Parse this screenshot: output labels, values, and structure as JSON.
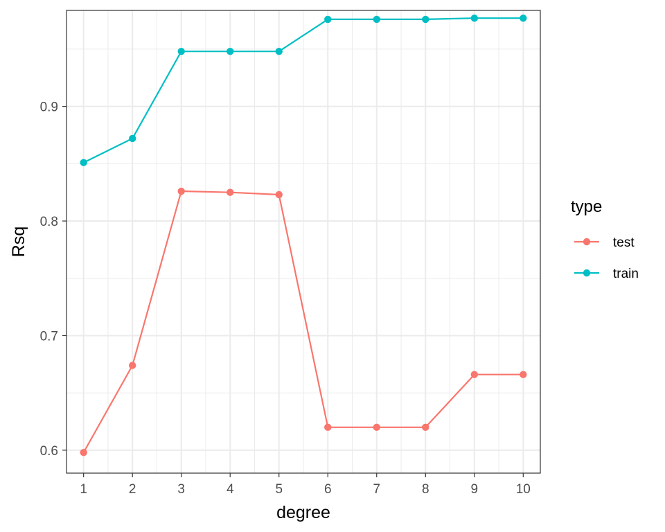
{
  "chart_data": {
    "type": "line",
    "xlabel": "degree",
    "ylabel": "Rsq",
    "x": [
      1,
      2,
      3,
      4,
      5,
      6,
      7,
      8,
      9,
      10
    ],
    "xlim": [
      0.65,
      10.35
    ],
    "ylim": [
      0.58,
      0.9838
    ],
    "xticks": [
      "1",
      "2",
      "3",
      "4",
      "5",
      "6",
      "7",
      "8",
      "9",
      "10"
    ],
    "yticks": [
      0.6,
      0.7,
      0.8,
      0.9
    ],
    "ytick_labels": [
      "0.6",
      "0.7",
      "0.8",
      "0.9"
    ],
    "grid": true,
    "legend": {
      "title": "type",
      "placement": "right"
    },
    "series": [
      {
        "name": "test",
        "color": "#F8766D",
        "values": [
          0.598,
          0.674,
          0.826,
          0.825,
          0.823,
          0.62,
          0.62,
          0.62,
          0.666,
          0.666
        ]
      },
      {
        "name": "train",
        "color": "#00BFC4",
        "values": [
          0.851,
          0.872,
          0.948,
          0.948,
          0.948,
          0.976,
          0.976,
          0.976,
          0.977,
          0.977
        ]
      }
    ]
  }
}
